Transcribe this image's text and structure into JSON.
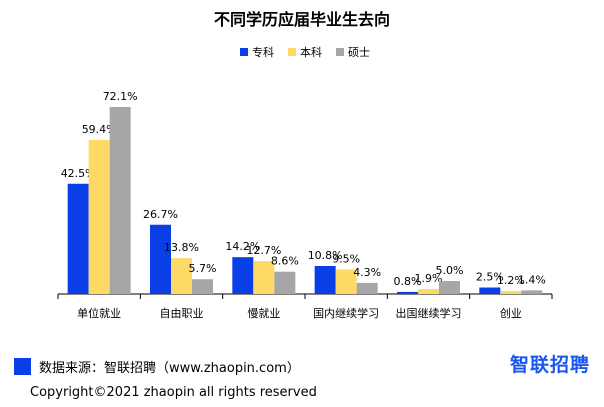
{
  "chart_data": {
    "type": "bar",
    "title": "不同学历应届毕业生去向",
    "categories": [
      "单位就业",
      "自由职业",
      "慢就业",
      "国内继续学习",
      "出国继续学习",
      "创业"
    ],
    "series": [
      {
        "name": "专科",
        "color": "#0a3ee6",
        "values": [
          42.5,
          26.7,
          14.2,
          10.8,
          0.8,
          2.5
        ],
        "labels": [
          "42.5%",
          "26.7%",
          "14.2%",
          "10.8%",
          "0.8%",
          "2.5%"
        ]
      },
      {
        "name": "本科",
        "color": "#ffd966",
        "values": [
          59.4,
          13.8,
          12.7,
          9.5,
          1.9,
          1.2
        ],
        "labels": [
          "59.4%",
          "13.8%",
          "12.7%",
          "9.5%",
          "1.9%",
          "1.2%"
        ]
      },
      {
        "name": "硕士",
        "color": "#a6a6a6",
        "values": [
          72.1,
          5.7,
          8.6,
          4.3,
          5.0,
          1.4
        ],
        "labels": [
          "72.1%",
          "5.7%",
          "8.6%",
          "4.3%",
          "5.0%",
          "1.4%"
        ]
      }
    ],
    "ylim": [
      0,
      72.1
    ],
    "legend_position": "top-center",
    "grid": false
  },
  "footer": {
    "source": "数据来源：智联招聘（www.zhaopin.com）",
    "logo": "智联招聘",
    "copyright": "Copyright©2021 zhaopin all rights reserved"
  }
}
